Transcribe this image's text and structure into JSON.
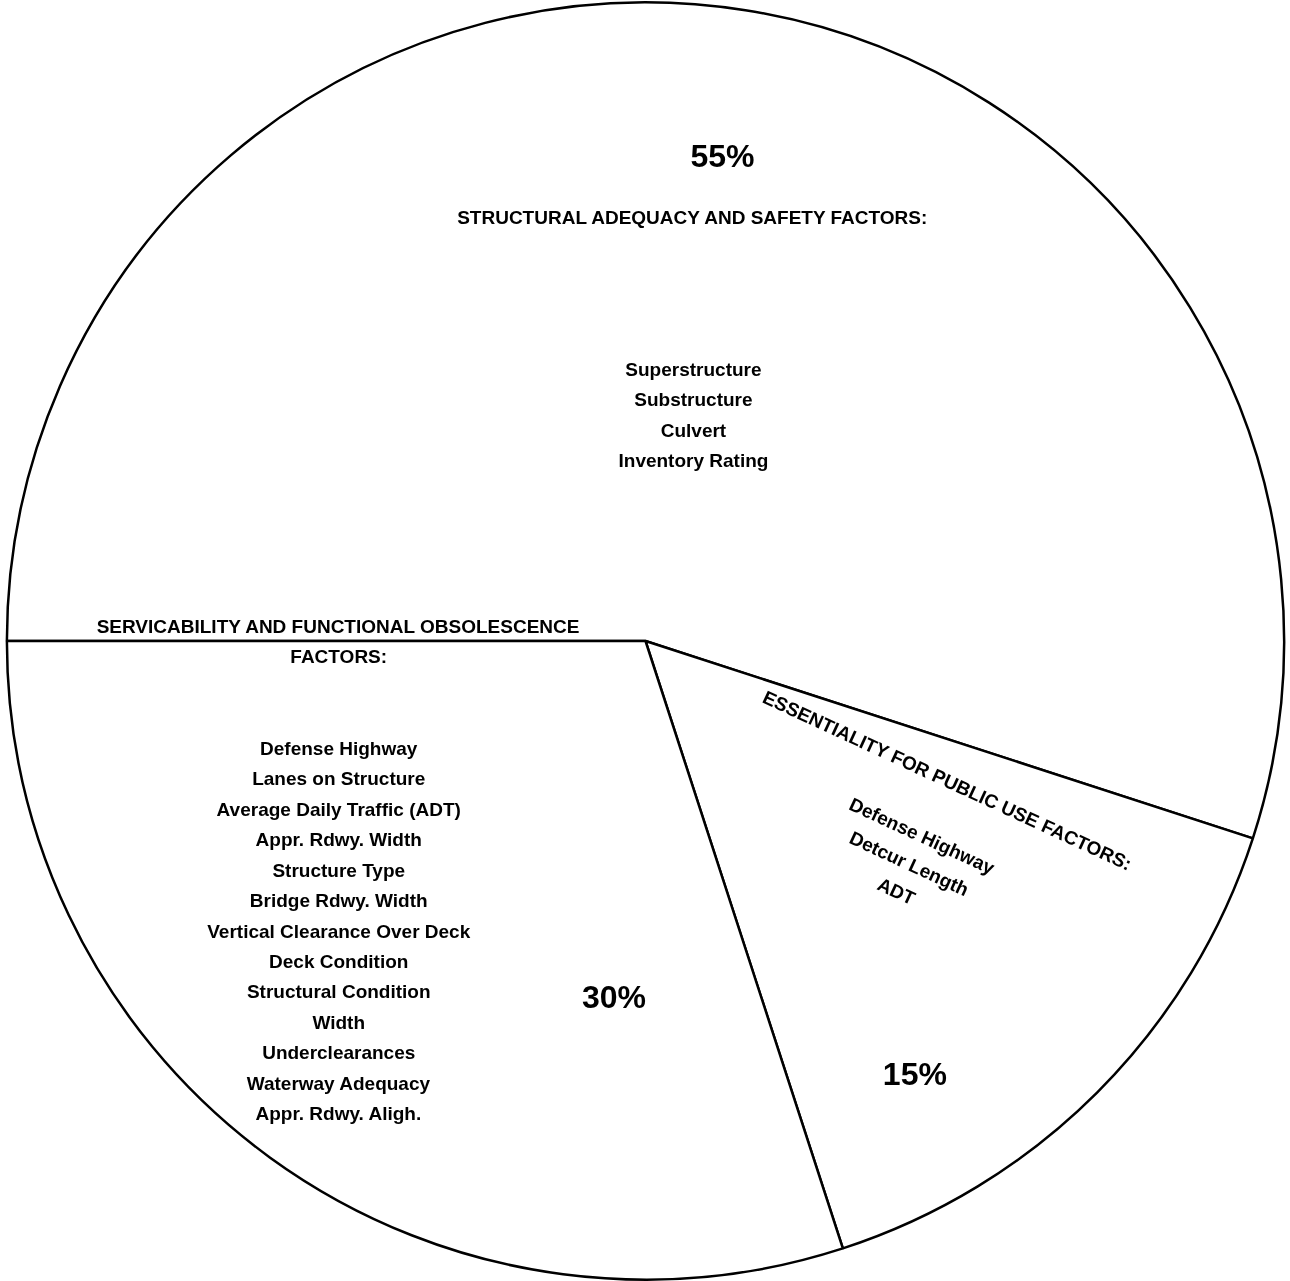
{
  "chart_data": {
    "type": "pie",
    "categories": [
      "STRUCTURAL ADEQUACY AND SAFETY FACTORS:\n\n\n\n\nSuperstructure\nSubstructure\nCulvert\nInventory Rating",
      "ESSENTIALITY FOR PUBLIC USE FACTORS:\n\nDefense Highway\nDetcur Length\nADT",
      "SERVICABILITY AND FUNCTIONAL OBSOLESCENCE\nFACTORS:\n\n\nDefense Highway\nLanes on Structure\nAverage Daily Traffic (ADT)\nAppr. Rdwy. Width\nStructure Type\nBridge Rdwy. Width\nVertical Clearance Over Deck\nDeck Condition\nStructural Condition\nWidth\nUnderclearances\nWaterway Adequacy\nAppr. Rdwy. Aligh."
    ],
    "values": [
      55,
      15,
      30
    ],
    "value_labels": [
      "55%",
      "15%",
      "30%"
    ],
    "colors": [
      "#ffffff",
      "#ffffff",
      "#ffffff"
    ]
  }
}
